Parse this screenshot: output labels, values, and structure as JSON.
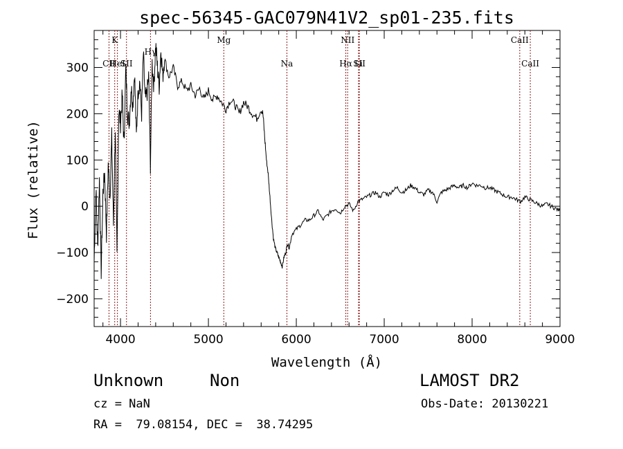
{
  "chart_data": {
    "type": "line",
    "title": "spec-56345-GAC079N41V2_sp01-235.fits",
    "xlabel": "Wavelength (Å)",
    "ylabel": "Flux (relative)",
    "xlim": [
      3700,
      9000
    ],
    "ylim": [
      -260,
      380
    ],
    "xticks": [
      4000,
      5000,
      6000,
      7000,
      8000,
      9000
    ],
    "yticks": [
      -200,
      -100,
      0,
      100,
      200,
      300
    ],
    "grid": false,
    "line_color": "#000000",
    "marker_color": "#8b1a1a",
    "series": [
      {
        "x": [
          3700,
          3720,
          3740,
          3760,
          3780,
          3800,
          3820,
          3840,
          3860,
          3880,
          3900,
          3920,
          3940,
          3960,
          3980,
          4000,
          4020,
          4040,
          4060,
          4080,
          4100,
          4120,
          4140,
          4160,
          4180,
          4200,
          4220,
          4240,
          4260,
          4280,
          4300,
          4320,
          4340,
          4360,
          4380,
          4400,
          4420,
          4440,
          4460,
          4480,
          4500,
          4550,
          4600,
          4650,
          4700,
          4750,
          4800,
          4850,
          4900,
          4950,
          5000,
          5050,
          5100,
          5150,
          5200,
          5250,
          5300,
          5350,
          5400,
          5450,
          5500,
          5550,
          5600,
          5620,
          5640,
          5660,
          5680,
          5700,
          5720,
          5740,
          5760,
          5780,
          5800,
          5820,
          5840,
          5860,
          5880,
          5900,
          5920,
          5950,
          6000,
          6050,
          6100,
          6150,
          6200,
          6250,
          6300,
          6350,
          6400,
          6450,
          6500,
          6550,
          6600,
          6650,
          6700,
          6750,
          6800,
          6850,
          6900,
          6950,
          7000,
          7050,
          7100,
          7150,
          7200,
          7250,
          7300,
          7350,
          7400,
          7450,
          7500,
          7550,
          7600,
          7650,
          7700,
          7750,
          7800,
          7850,
          7900,
          7950,
          8000,
          8050,
          8100,
          8150,
          8200,
          8250,
          8300,
          8350,
          8400,
          8450,
          8500,
          8550,
          8600,
          8650,
          8700,
          8750,
          8800,
          8850,
          8900,
          8950,
          9000
        ],
        "y": [
          -120,
          40,
          -90,
          60,
          -140,
          30,
          70,
          -60,
          90,
          20,
          150,
          -40,
          170,
          -110,
          210,
          180,
          240,
          130,
          300,
          200,
          180,
          260,
          220,
          290,
          150,
          250,
          270,
          200,
          330,
          230,
          240,
          280,
          90,
          310,
          260,
          350,
          300,
          260,
          340,
          280,
          320,
          280,
          300,
          260,
          270,
          250,
          260,
          240,
          255,
          230,
          250,
          230,
          240,
          225,
          210,
          230,
          220,
          200,
          225,
          215,
          200,
          190,
          210,
          200,
          150,
          100,
          70,
          20,
          -30,
          -70,
          -90,
          -100,
          -110,
          -120,
          -130,
          -110,
          -100,
          -80,
          -90,
          -60,
          -50,
          -40,
          -30,
          -30,
          -20,
          -10,
          -30,
          -20,
          -10,
          -5,
          -15,
          0,
          5,
          -10,
          10,
          15,
          20,
          25,
          30,
          20,
          30,
          25,
          35,
          40,
          30,
          35,
          45,
          40,
          30,
          25,
          35,
          30,
          10,
          30,
          35,
          40,
          45,
          40,
          45,
          40,
          50,
          45,
          45,
          40,
          40,
          35,
          30,
          25,
          20,
          20,
          15,
          10,
          20,
          15,
          10,
          5,
          0,
          5,
          0,
          -5,
          -10
        ]
      }
    ],
    "lines": [
      {
        "name": "CII",
        "x": 3869,
        "label_row": 1
      },
      {
        "name": "K",
        "x": 3934,
        "label_row": 0
      },
      {
        "name": "HeI",
        "x": 3965,
        "label_row": 2
      },
      {
        "name": "SII",
        "x": 4068,
        "label_row": 1
      },
      {
        "name": "Hγ",
        "x": 4341,
        "label_row": 3
      },
      {
        "name": "Mg",
        "x": 5175,
        "label_row": 0
      },
      {
        "name": "Na",
        "x": 5893,
        "label_row": 1
      },
      {
        "name": "NII",
        "x": 6584,
        "label_row": 0
      },
      {
        "name": "Hα",
        "x": 6563,
        "label_row": 2
      },
      {
        "name": "SII",
        "x": 6717,
        "label_row": 2
      },
      {
        "name": "Li",
        "x": 6708,
        "label_row": 1
      },
      {
        "name": "CaII",
        "x": 8542,
        "label_row": 0
      },
      {
        "name": "CaII",
        "x": 8662,
        "label_row": 1
      }
    ]
  },
  "info": {
    "classification": "Unknown",
    "subclass": "Non",
    "survey": "LAMOST DR2",
    "cz": "cz = NaN",
    "obs_date": "Obs-Date: 20130221",
    "radec": "RA =  79.08154, DEC =  38.74295"
  }
}
